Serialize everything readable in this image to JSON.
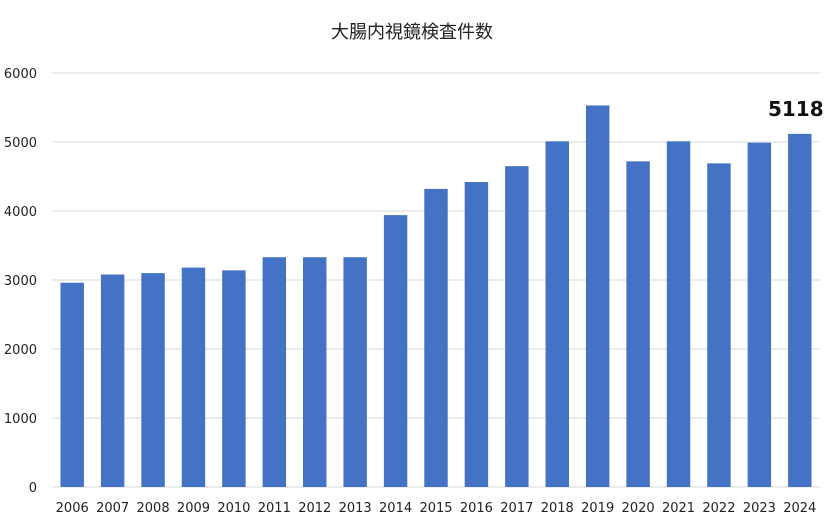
{
  "chart_data": {
    "type": "bar",
    "title": "大腸内視鏡検査件数",
    "xlabel": "",
    "ylabel": "",
    "categories": [
      "2006",
      "2007",
      "2008",
      "2009",
      "2010",
      "2011",
      "2012",
      "2013",
      "2014",
      "2015",
      "2016",
      "2017",
      "2018",
      "2019",
      "2020",
      "2021",
      "2022",
      "2023",
      "2024"
    ],
    "values": [
      2960,
      3080,
      3100,
      3180,
      3140,
      3330,
      3330,
      3330,
      3940,
      4320,
      4420,
      4650,
      5010,
      5530,
      4720,
      5010,
      4690,
      4990,
      5118
    ],
    "ylim": [
      0,
      6000
    ],
    "yticks": [
      "0",
      "1000",
      "2000",
      "3000",
      "4000",
      "5000",
      "6000"
    ],
    "grid": true,
    "legend": "none",
    "annotation": {
      "label": "5118",
      "category": "2024"
    },
    "colors": {
      "bar": "#4472C4",
      "grid": "#D9D9D9",
      "text": "#222222"
    }
  }
}
